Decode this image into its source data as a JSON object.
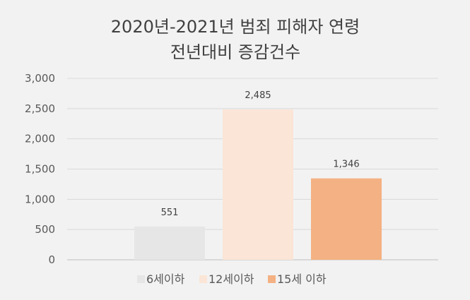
{
  "chart_data": {
    "type": "bar",
    "title_lines": [
      "2020년-2021년 범죄 피해자 연령",
      "전년대비 증감건수"
    ],
    "xlabel": "",
    "ylabel": "",
    "ylim": [
      0,
      3000
    ],
    "yticks": [
      0,
      500,
      1000,
      1500,
      2000,
      2500,
      3000
    ],
    "ytick_labels": [
      "0",
      "500",
      "1,000",
      "1,500",
      "2,000",
      "2,500",
      "3,000"
    ],
    "grid": true,
    "legend_position": "bottom",
    "series": [
      {
        "name": "6세이하",
        "value": 551,
        "label": "551",
        "color": "#e7e6e6"
      },
      {
        "name": "12세이하",
        "value": 2485,
        "label": "2,485",
        "color": "#fbe5d6"
      },
      {
        "name": "15세 이하",
        "value": 1346,
        "label": "1,346",
        "color": "#f4b183"
      }
    ]
  }
}
